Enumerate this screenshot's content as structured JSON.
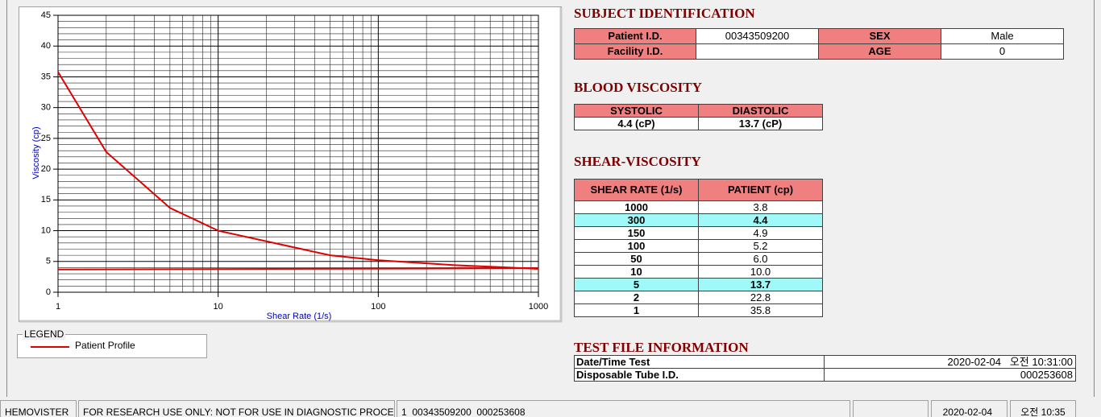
{
  "chart_data": {
    "type": "line",
    "x_label": "Shear Rate (1/s)",
    "y_label": "Viscosity (cp)",
    "log_x": true,
    "grid": true,
    "xlim": [
      1,
      1000
    ],
    "xticks": [
      1,
      10,
      100,
      1000
    ],
    "ylim": [
      0,
      45
    ],
    "yticks": [
      0,
      5,
      10,
      15,
      20,
      25,
      30,
      35,
      40,
      45
    ],
    "series": [
      {
        "name": "Patient Profile",
        "color": "#e00000",
        "x": [
          1,
          2,
          5,
          10,
          50,
          100,
          150,
          300,
          1000
        ],
        "values": [
          35.8,
          22.8,
          13.7,
          10.0,
          6.0,
          5.2,
          4.9,
          4.4,
          3.8
        ]
      },
      {
        "color": "#e00000",
        "x": [
          1,
          1000
        ],
        "values": [
          3.7,
          3.9
        ]
      }
    ]
  },
  "legend": {
    "title": "LEGEND"
  },
  "subject": {
    "title": "SUBJECT IDENTIFICATION",
    "rows": [
      {
        "label": "Patient I.D.",
        "value": "00343509200",
        "label2": "SEX",
        "value2": "Male"
      },
      {
        "label": "Facility I.D.",
        "label2": "AGE",
        "value2": 0
      }
    ]
  },
  "blood_viscosity": {
    "title": "BLOOD VISCOSITY",
    "headers": [
      "SYSTOLIC",
      "DIASTOLIC"
    ],
    "values": [
      "4.4 (cP)",
      "13.7 (cP)"
    ]
  },
  "shear_viscosity": {
    "title": "SHEAR-VISCOSITY",
    "headers": [
      "SHEAR RATE (1/s)",
      "PATIENT (cp)"
    ],
    "rows": [
      {
        "rate": 1000,
        "viscosity": "3.8"
      },
      {
        "rate": 300,
        "viscosity": "4.4",
        "highlight": true
      },
      {
        "rate": 150,
        "viscosity": "4.9"
      },
      {
        "rate": 100,
        "viscosity": "5.2"
      },
      {
        "rate": 50,
        "viscosity": "6.0"
      },
      {
        "rate": 10,
        "viscosity": "10.0"
      },
      {
        "rate": 5,
        "viscosity": "13.7",
        "highlight": true
      },
      {
        "rate": 2,
        "viscosity": "22.8"
      },
      {
        "rate": 1,
        "viscosity": "35.8"
      }
    ]
  },
  "test_file": {
    "title": "TEST FILE INFORMATION",
    "rows": [
      [
        "Date/Time Test",
        "2020-02-04   오전 10:31:00"
      ],
      [
        "Disposable Tube I.D.",
        "000253608"
      ]
    ]
  },
  "status_bar": [
    "HEMOVISTER",
    "FOR RESEARCH USE ONLY: NOT FOR USE IN DIAGNOSTIC PROCEDURES",
    "1  00343509200  000253608",
    "2020-02-04",
    "오전 10:35"
  ]
}
